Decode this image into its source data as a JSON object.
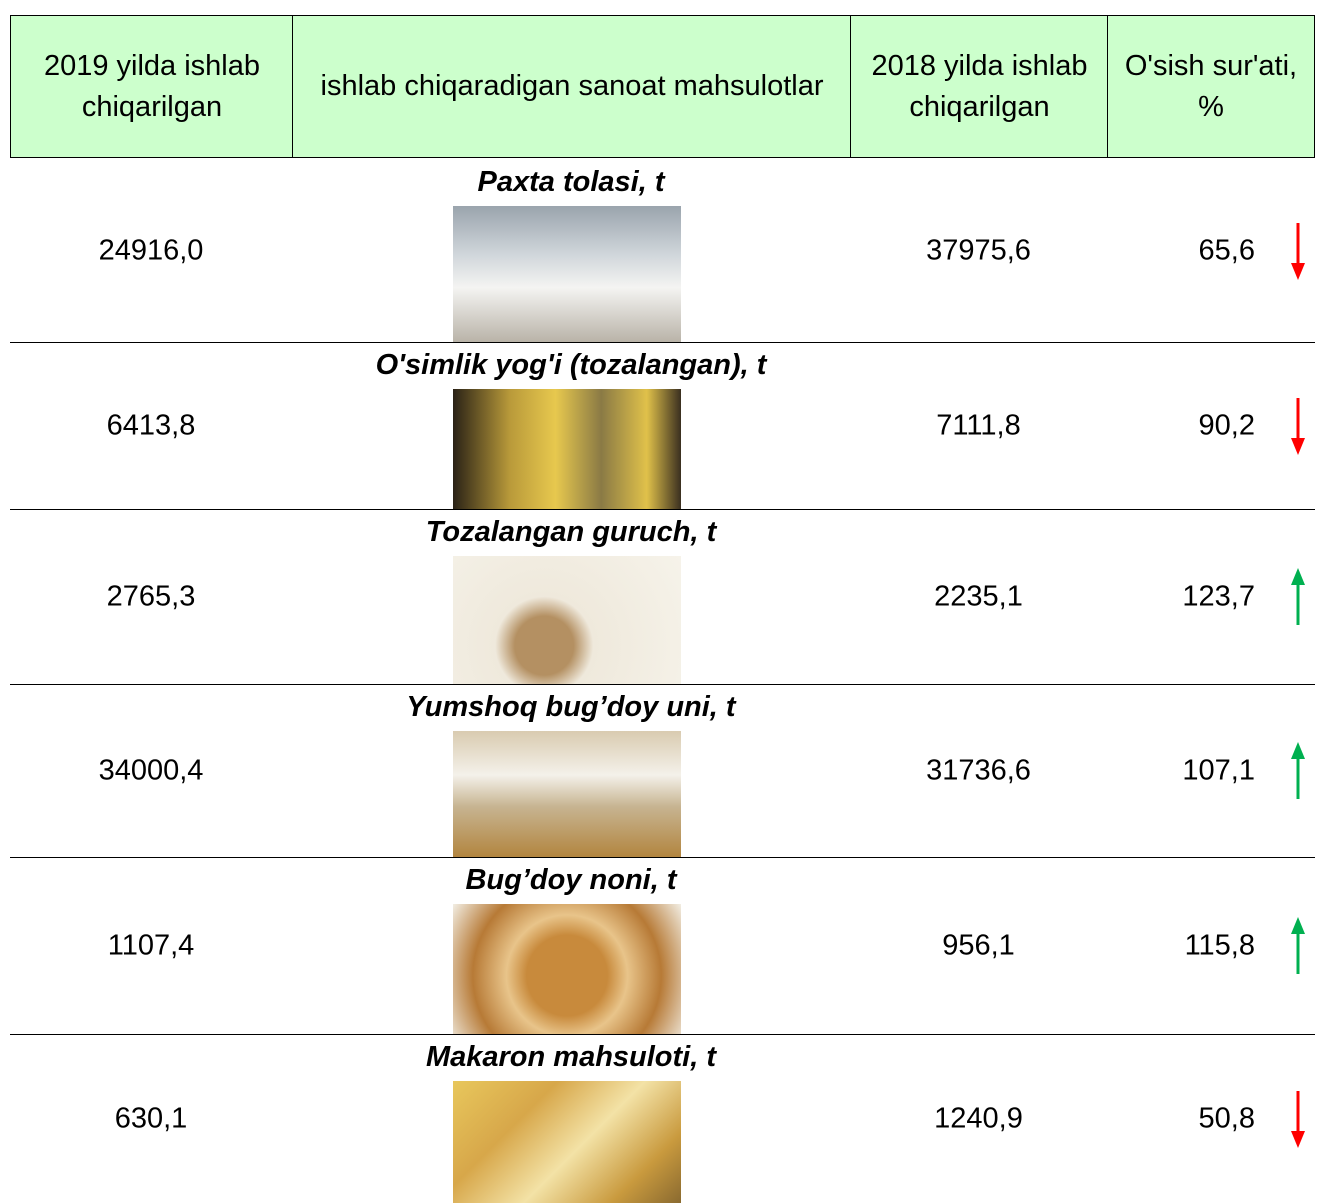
{
  "table": {
    "header": [
      "2019 yilda ishlab chiqarilgan",
      "ishlab chiqaradigan sanoat mahsulotlar",
      "2018 yilda ishlab chiqarilgan",
      "O'sish sur'ati, %"
    ],
    "rows": [
      {
        "product": "Paxta tolasi, t",
        "y2019": "24916,0",
        "y2018": "37975,6",
        "growth": "65,6",
        "arrow": "down"
      },
      {
        "product": "O'simlik yog'i (tozalangan), t",
        "y2019": "6413,8",
        "y2018": "7111,8",
        "growth": "90,2",
        "arrow": "down"
      },
      {
        "product": "Tozalangan guruch, t",
        "y2019": "2765,3",
        "y2018": "2235,1",
        "growth": "123,7",
        "arrow": "up"
      },
      {
        "product": "Yumshoq bug’doy uni, t",
        "y2019": "34000,4",
        "y2018": "31736,6",
        "growth": "107,1",
        "arrow": "up"
      },
      {
        "product": "Bug’doy noni, t",
        "y2019": "1107,4",
        "y2018": "956,1",
        "growth": "115,8",
        "arrow": "up"
      },
      {
        "product": "Makaron mahsuloti, t",
        "y2019": "630,1",
        "y2018": "1240,9",
        "growth": "50,8",
        "arrow": "down"
      }
    ]
  }
}
